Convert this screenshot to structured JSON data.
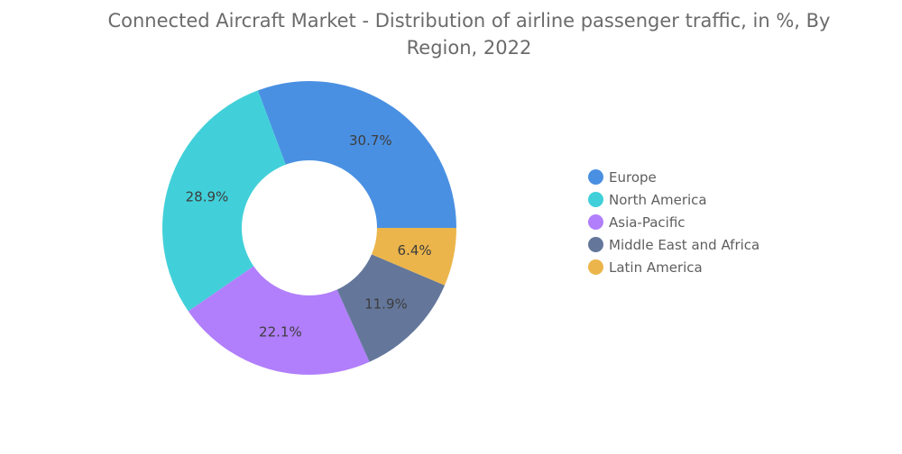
{
  "chart_data": {
    "type": "pie",
    "title": "Connected Aircraft Market - Distribution of airline passenger traffic, in %, By Region, 2022",
    "categories": [
      "Europe",
      "North America",
      "Asia-Pacific",
      "Middle East and Africa",
      "Latin America"
    ],
    "values": [
      30.7,
      28.9,
      22.1,
      11.9,
      6.4
    ],
    "data_labels": [
      "30.7%",
      "28.9%",
      "22.1%",
      "11.9%",
      "6.4%"
    ],
    "colors": [
      "#4a90e2",
      "#41d0d9",
      "#b17ffb",
      "#64779b",
      "#ecb54b"
    ],
    "donut": true,
    "legend_position": "right"
  }
}
